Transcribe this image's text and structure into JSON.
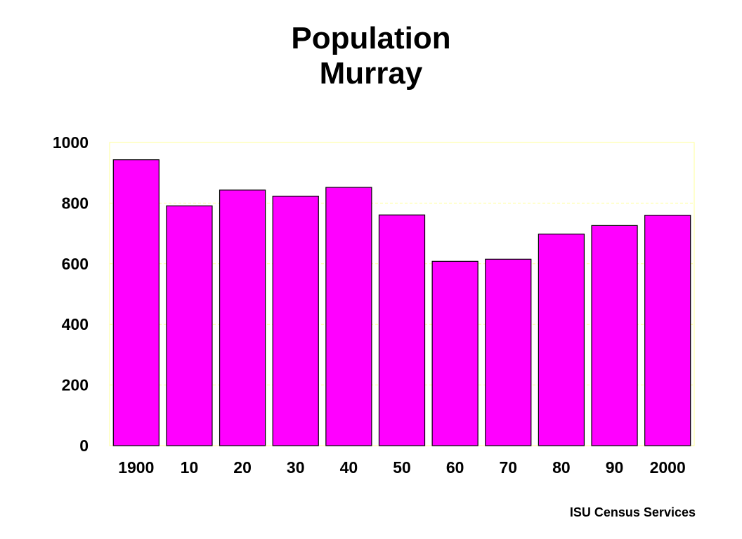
{
  "chart_data": {
    "type": "bar",
    "title": [
      "Population",
      "Murray"
    ],
    "xlabel": "",
    "ylabel": "",
    "categories": [
      "1900",
      "10",
      "20",
      "30",
      "40",
      "50",
      "60",
      "70",
      "80",
      "90",
      "2000"
    ],
    "values": [
      943,
      791,
      843,
      823,
      852,
      761,
      608,
      615,
      698,
      726,
      760
    ],
    "ylim": [
      0,
      1000
    ],
    "yticks": [
      "0",
      "200",
      "400",
      "600",
      "800",
      "1000"
    ],
    "grid": true,
    "legend": "none",
    "colors": {
      "bar": "#ff00ff",
      "bar_edge": "#000000",
      "grid": "#ffff99",
      "axis": "#ffff99"
    }
  },
  "footer": {
    "source": "ISU Census Services"
  }
}
